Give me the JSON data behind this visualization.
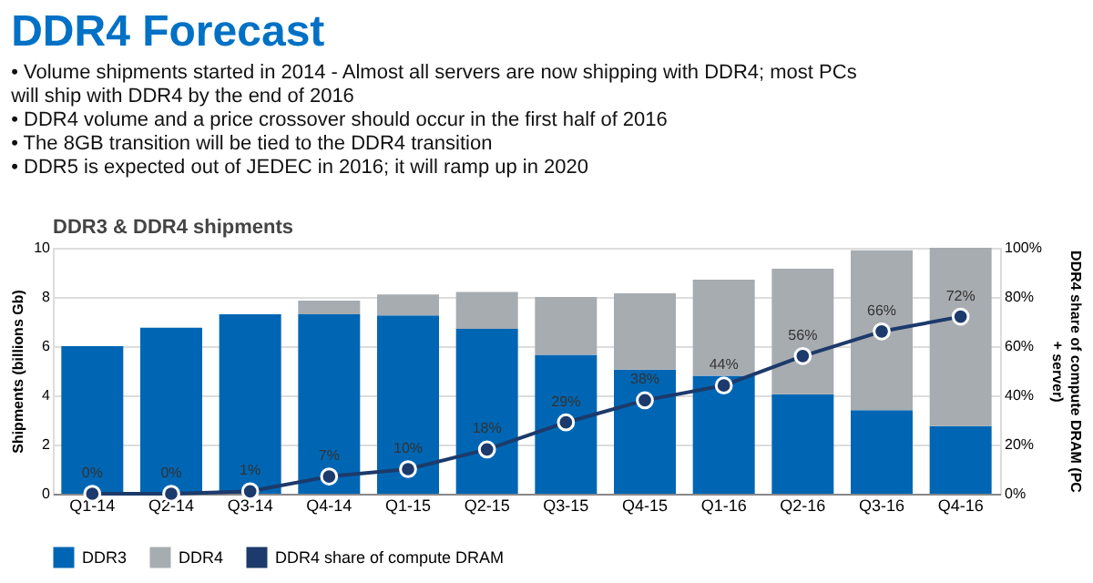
{
  "chart_data": {
    "type": "bar",
    "title": "DDR4 Forecast",
    "subtitle": "DDR3 & DDR4 shipments",
    "annotations": [
      "• Volume shipments started in 2014 - Almost all servers are now shipping with DDR4; most PCs will ship with DDR4 by the end of 2016",
      "• DDR4 volume and a price crossover should occur in the first half of 2016",
      "• The 8GB transition will be tied to the DDR4 transition",
      "• DDR5 is expected out of JEDEC in 2016; it will ramp up in 2020"
    ],
    "ylabel": "Shipments (billions Gb)",
    "y2label": "DDR4 share of compute DRAM (PC + server)",
    "categories": [
      "Q1-14",
      "Q2-14",
      "Q3-14",
      "Q4-14",
      "Q1-15",
      "Q2-15",
      "Q3-15",
      "Q4-15",
      "Q1-16",
      "Q2-16",
      "Q3-16",
      "Q4-16"
    ],
    "stacked": true,
    "series": [
      {
        "name": "DDR3",
        "color": "#0066b3",
        "values": [
          6.0,
          6.75,
          7.3,
          7.3,
          7.25,
          6.7,
          5.65,
          5.05,
          4.8,
          4.05,
          3.4,
          2.75
        ]
      },
      {
        "name": "DDR4",
        "color": "#a7acb1",
        "values": [
          0,
          0,
          0,
          0.55,
          0.85,
          1.5,
          2.35,
          3.1,
          3.9,
          5.1,
          6.5,
          7.25
        ]
      },
      {
        "name": "DDR4 share of compute DRAM",
        "type": "line",
        "axis": "y2",
        "color": "#1c3a6b",
        "marker": "circle",
        "values": [
          0,
          0,
          1,
          7,
          10,
          18,
          29,
          38,
          44,
          56,
          66,
          72
        ],
        "value_labels": [
          "0%",
          "0%",
          "1%",
          "7%",
          "10%",
          "18%",
          "29%",
          "38%",
          "44%",
          "56%",
          "66%",
          "72%"
        ]
      }
    ],
    "ylim": [
      0,
      10
    ],
    "yticks": [
      0,
      2,
      4,
      6,
      8,
      10
    ],
    "y2lim": [
      0,
      100
    ],
    "y2ticks": [
      {
        "value": 0,
        "label": "0%"
      },
      {
        "value": 20,
        "label": "20%"
      },
      {
        "value": 40,
        "label": "40%"
      },
      {
        "value": 60,
        "label": "60%"
      },
      {
        "value": 80,
        "label": "80%"
      },
      {
        "value": 100,
        "label": "100%"
      }
    ],
    "grid": "y",
    "legend": "bottom"
  }
}
